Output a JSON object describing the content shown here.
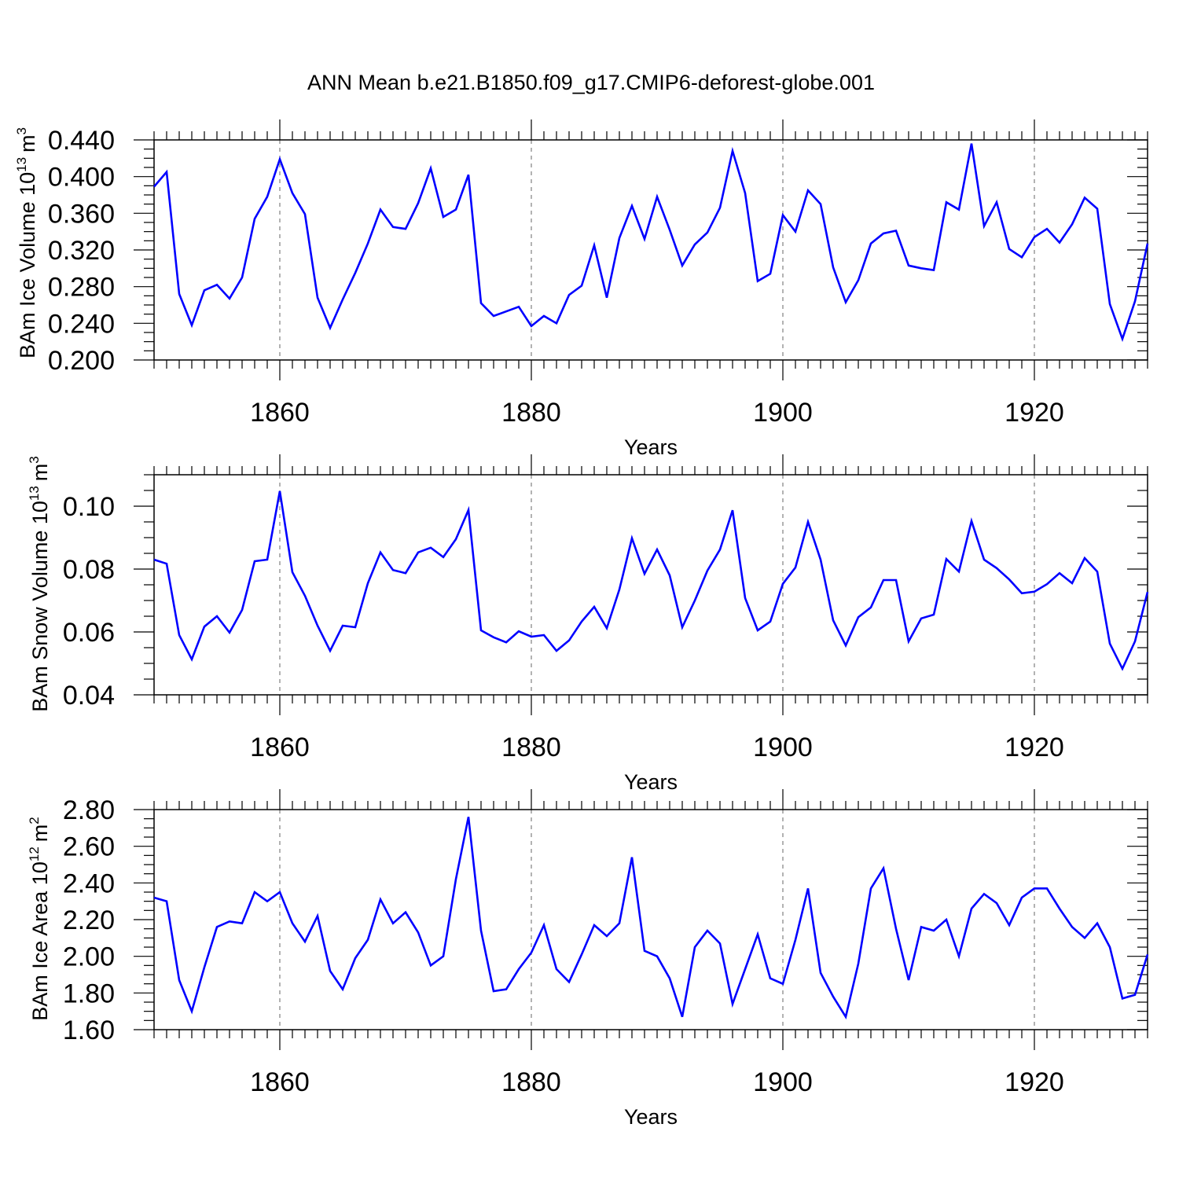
{
  "title": "ANN Mean b.e21.B1850.f09_g17.CMIP6-deforest-globe.001",
  "colors": {
    "line": "#0000ff",
    "axis": "#000000",
    "grid": "#808080",
    "background": "#ffffff"
  },
  "chart_data": [
    {
      "type": "line",
      "ylabel_main": "BAm Ice Volume 10",
      "ylabel_exp": "13",
      "ylabel_unit": "m",
      "ylabel_unit_exp": "3",
      "xlabel": "Years",
      "xlim": [
        1850,
        1929
      ],
      "ylim": [
        0.2,
        0.44
      ],
      "yticks": [
        0.2,
        0.24,
        0.28,
        0.32,
        0.36,
        0.4,
        0.44
      ],
      "ytick_labels": [
        "0.200",
        "0.240",
        "0.280",
        "0.320",
        "0.360",
        "0.400",
        "0.440"
      ],
      "xticks": [
        1860,
        1880,
        1900,
        1920
      ],
      "xtick_labels": [
        "1860",
        "1880",
        "1900",
        "1920"
      ],
      "series": [
        {
          "name": "BAm Ice Volume",
          "x_start": 1850,
          "values": [
            0.389,
            0.405,
            0.272,
            0.238,
            0.276,
            0.282,
            0.267,
            0.29,
            0.354,
            0.378,
            0.419,
            0.382,
            0.359,
            0.268,
            0.235,
            0.266,
            0.295,
            0.327,
            0.364,
            0.345,
            0.343,
            0.371,
            0.409,
            0.356,
            0.364,
            0.402,
            0.262,
            0.248,
            0.253,
            0.258,
            0.237,
            0.248,
            0.24,
            0.271,
            0.281,
            0.325,
            0.268,
            0.333,
            0.368,
            0.332,
            0.378,
            0.342,
            0.303,
            0.326,
            0.339,
            0.366,
            0.428,
            0.382,
            0.286,
            0.294,
            0.358,
            0.34,
            0.385,
            0.37,
            0.301,
            0.263,
            0.287,
            0.327,
            0.338,
            0.341,
            0.303,
            0.3,
            0.298,
            0.372,
            0.364,
            0.436,
            0.346,
            0.372,
            0.321,
            0.312,
            0.334,
            0.343,
            0.328,
            0.348,
            0.377,
            0.365,
            0.261,
            0.223,
            0.264,
            0.327
          ]
        }
      ]
    },
    {
      "type": "line",
      "ylabel_main": "BAm Snow Volume 10",
      "ylabel_exp": "13",
      "ylabel_unit": "m",
      "ylabel_unit_exp": "3",
      "xlabel": "Years",
      "xlim": [
        1850,
        1929
      ],
      "ylim": [
        0.04,
        0.11
      ],
      "yticks": [
        0.04,
        0.06,
        0.08,
        0.1
      ],
      "ytick_labels": [
        "0.04",
        "0.06",
        "0.08",
        "0.10"
      ],
      "xticks": [
        1860,
        1880,
        1900,
        1920
      ],
      "xtick_labels": [
        "1860",
        "1880",
        "1900",
        "1920"
      ],
      "series": [
        {
          "name": "BAm Snow Volume",
          "x_start": 1850,
          "values": [
            0.083,
            0.0817,
            0.059,
            0.0513,
            0.0617,
            0.065,
            0.0598,
            0.067,
            0.0825,
            0.083,
            0.1048,
            0.079,
            0.0715,
            0.062,
            0.054,
            0.062,
            0.0615,
            0.0755,
            0.0853,
            0.0797,
            0.0787,
            0.0853,
            0.0868,
            0.0838,
            0.0895,
            0.0988,
            0.0605,
            0.0583,
            0.0567,
            0.0602,
            0.0585,
            0.059,
            0.054,
            0.0573,
            0.0633,
            0.068,
            0.0612,
            0.0735,
            0.0898,
            0.0785,
            0.0862,
            0.078,
            0.0615,
            0.07,
            0.0795,
            0.0862,
            0.0987,
            0.0708,
            0.0605,
            0.0633,
            0.0753,
            0.0805,
            0.095,
            0.083,
            0.0637,
            0.0557,
            0.0647,
            0.0678,
            0.0765,
            0.0765,
            0.057,
            0.0643,
            0.0655,
            0.0832,
            0.0792,
            0.0953,
            0.083,
            0.0803,
            0.0767,
            0.0723,
            0.0728,
            0.0752,
            0.0787,
            0.0755,
            0.0835,
            0.0792,
            0.0563,
            0.0483,
            0.057,
            0.0727
          ]
        }
      ]
    },
    {
      "type": "line",
      "ylabel_main": "BAm Ice Area 10",
      "ylabel_exp": "12",
      "ylabel_unit": "m",
      "ylabel_unit_exp": "2",
      "xlabel": "Years",
      "xlim": [
        1850,
        1929
      ],
      "ylim": [
        1.6,
        2.8
      ],
      "yticks": [
        1.6,
        1.8,
        2.0,
        2.2,
        2.4,
        2.6,
        2.8
      ],
      "ytick_labels": [
        "1.60",
        "1.80",
        "2.00",
        "2.20",
        "2.40",
        "2.60",
        "2.80"
      ],
      "xticks": [
        1860,
        1880,
        1900,
        1920
      ],
      "xtick_labels": [
        "1860",
        "1880",
        "1900",
        "1920"
      ],
      "series": [
        {
          "name": "BAm Ice Area",
          "x_start": 1850,
          "values": [
            2.32,
            2.3,
            1.87,
            1.7,
            1.94,
            2.16,
            2.19,
            2.18,
            2.35,
            2.3,
            2.35,
            2.18,
            2.08,
            2.22,
            1.92,
            1.82,
            1.99,
            2.09,
            2.31,
            2.18,
            2.24,
            2.13,
            1.95,
            2.0,
            2.42,
            2.76,
            2.14,
            1.81,
            1.82,
            1.93,
            2.02,
            2.17,
            1.93,
            1.86,
            2.01,
            2.17,
            2.11,
            2.18,
            2.54,
            2.03,
            2.0,
            1.88,
            1.67,
            2.05,
            2.14,
            2.07,
            1.74,
            1.93,
            2.12,
            1.88,
            1.85,
            2.09,
            2.37,
            1.91,
            1.78,
            1.67,
            1.96,
            2.37,
            2.48,
            2.15,
            1.87,
            2.16,
            2.14,
            2.2,
            2.0,
            2.26,
            2.34,
            2.29,
            2.17,
            2.32,
            2.37,
            2.37,
            2.26,
            2.16,
            2.1,
            2.18,
            2.05,
            1.77,
            1.79,
            2.01
          ]
        }
      ]
    }
  ]
}
